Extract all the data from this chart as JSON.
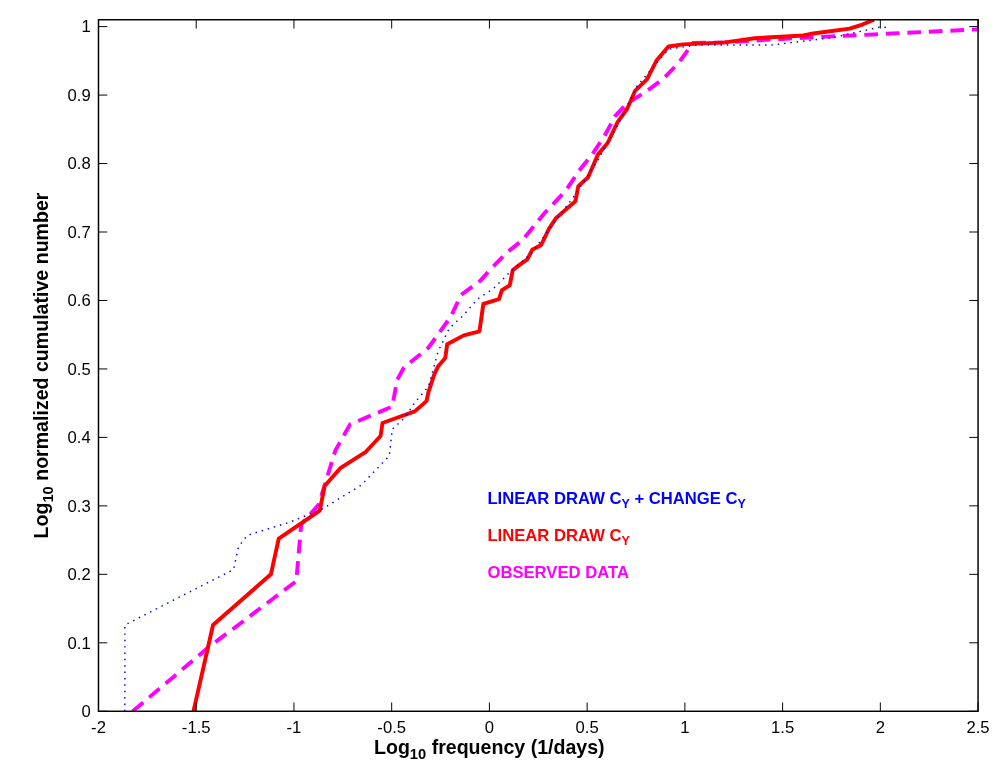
{
  "chart_data": {
    "type": "line",
    "xlabel": "Log$_{10}$ frequency (1/days)",
    "ylabel": "Log$_{10}$ normalized cumulative number",
    "xlim": [
      -2,
      2.5
    ],
    "ylim": [
      0,
      1.01
    ],
    "xticks": [
      -2,
      -1.5,
      -1,
      -0.5,
      0,
      0.5,
      1,
      1.5,
      2,
      2.5
    ],
    "yticks": [
      0,
      0.1,
      0.2,
      0.3,
      0.4,
      0.5,
      0.6,
      0.7,
      0.8,
      0.9,
      1
    ],
    "grid": false,
    "legend": "bottom right",
    "series": [
      {
        "name": "LINEAR DRAW C$_{Y}$ + CHANGE C$_{Y}$",
        "color": "#0000ff",
        "line_style": "dotted",
        "x": [
          -1.865,
          -1.865,
          -1.639,
          -1.309,
          -1.284,
          -1.239,
          -1.023,
          -0.858,
          -0.657,
          -0.512,
          -0.497,
          -0.432,
          -0.382,
          -0.312,
          -0.262,
          -0.206,
          -0.131,
          -0.061,
          0.019,
          0.104,
          0.219,
          0.29,
          0.44,
          0.555,
          0.655,
          0.755,
          0.916,
          1.056,
          1.442,
          1.757,
          1.993,
          2.04
        ],
        "values": [
          0,
          0.126,
          0.159,
          0.207,
          0.24,
          0.257,
          0.276,
          0.295,
          0.33,
          0.373,
          0.412,
          0.429,
          0.451,
          0.474,
          0.526,
          0.559,
          0.579,
          0.602,
          0.617,
          0.641,
          0.67,
          0.698,
          0.755,
          0.805,
          0.855,
          0.913,
          0.967,
          0.973,
          0.973,
          0.984,
          0.999,
          0.999
        ]
      },
      {
        "name": "LINEAR DRAW C$_{Y}$",
        "color": "#ff0000",
        "line_style": "solid",
        "x": [
          -1.514,
          -1.414,
          -1.118,
          -1.078,
          -0.868,
          -0.843,
          -0.763,
          -0.632,
          -0.557,
          -0.547,
          -0.382,
          -0.322,
          -0.312,
          -0.282,
          -0.262,
          -0.226,
          -0.216,
          -0.131,
          -0.051,
          -0.031,
          0.049,
          0.064,
          0.104,
          0.119,
          0.154,
          0.194,
          0.219,
          0.265,
          0.305,
          0.34,
          0.44,
          0.455,
          0.505,
          0.555,
          0.605,
          0.655,
          0.705,
          0.745,
          0.806,
          0.856,
          0.916,
          0.991,
          1.206,
          1.357,
          1.607,
          1.657,
          1.843,
          1.908,
          1.968
        ],
        "values": [
          0,
          0.126,
          0.2,
          0.252,
          0.293,
          0.329,
          0.355,
          0.379,
          0.402,
          0.421,
          0.438,
          0.453,
          0.466,
          0.492,
          0.504,
          0.516,
          0.536,
          0.549,
          0.555,
          0.595,
          0.602,
          0.615,
          0.622,
          0.644,
          0.652,
          0.66,
          0.674,
          0.681,
          0.705,
          0.72,
          0.745,
          0.767,
          0.78,
          0.813,
          0.83,
          0.86,
          0.88,
          0.906,
          0.923,
          0.951,
          0.971,
          0.974,
          0.977,
          0.983,
          0.987,
          0.99,
          0.997,
          1.003,
          1.01
        ]
      },
      {
        "name": "OBSERVED DATA",
        "color": "#ff00ff",
        "line_style": "dashed",
        "x": [
          -1.825,
          -1.439,
          -0.988,
          -0.963,
          -0.873,
          -0.788,
          -0.713,
          -0.497,
          -0.472,
          -0.437,
          -0.312,
          -0.196,
          -0.146,
          -0.046,
          0.004,
          0.089,
          0.169,
          0.28,
          0.39,
          0.455,
          0.53,
          0.59,
          0.645,
          0.705,
          0.806,
          0.891,
          0.971,
          1.041,
          1.206,
          1.557,
          1.993,
          2.5
        ],
        "values": [
          0,
          0.093,
          0.19,
          0.273,
          0.302,
          0.381,
          0.419,
          0.445,
          0.484,
          0.502,
          0.531,
          0.577,
          0.608,
          0.629,
          0.645,
          0.67,
          0.688,
          0.727,
          0.76,
          0.788,
          0.815,
          0.841,
          0.87,
          0.888,
          0.906,
          0.924,
          0.948,
          0.976,
          0.977,
          0.983,
          0.989,
          0.996
        ]
      }
    ]
  }
}
